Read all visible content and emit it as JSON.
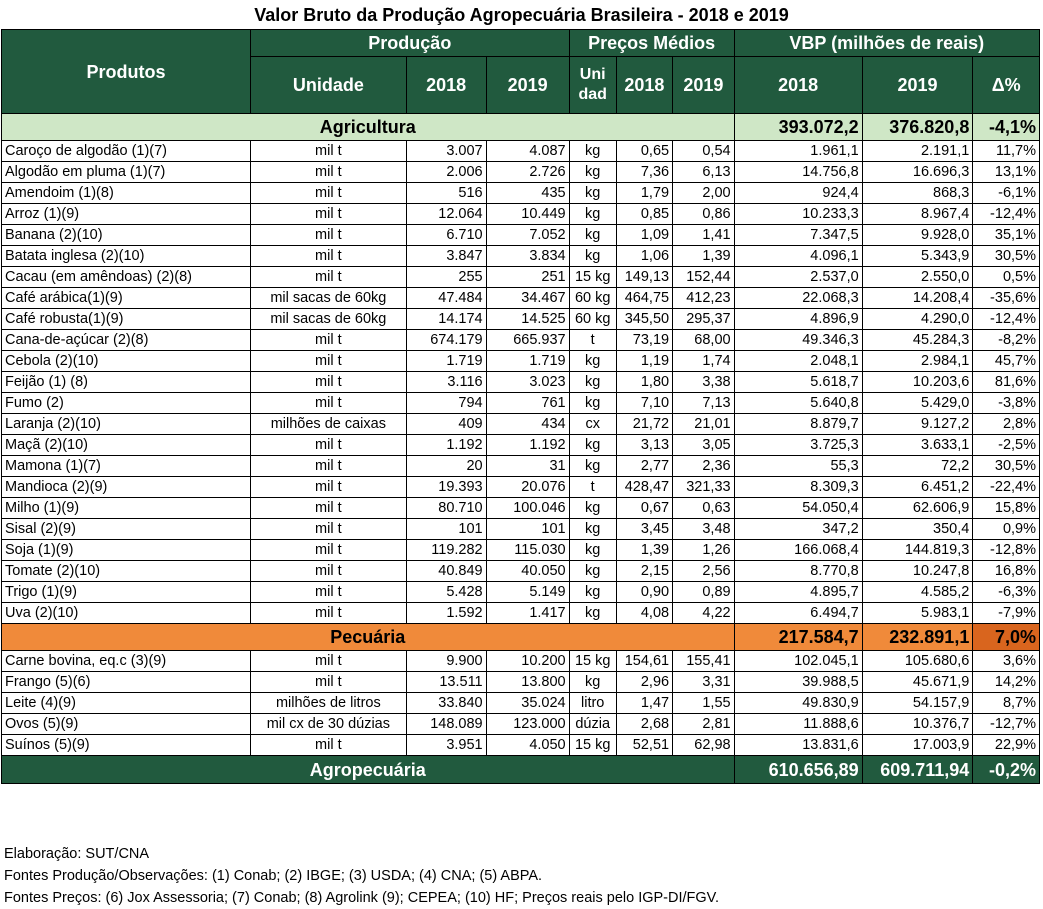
{
  "title": "Valor Bruto da Produção Agropecuária Brasileira - 2018 e 2019",
  "headers": {
    "produtos": "Produtos",
    "producao": "Produção",
    "precos_medios": "Preços Médios",
    "vbp": "VBP (milhões de reais)",
    "unidade": "Unidade",
    "y2018": "2018",
    "y2019": "2019",
    "unid_price": "Uni dad",
    "delta": "Δ%"
  },
  "agricultura": {
    "label": "Agricultura",
    "vbp2018": "393.072,2",
    "vbp2019": "376.820,8",
    "delta": "-4,1%",
    "rows": [
      {
        "produto": "Caroço de algodão (1)(7)",
        "unidade": "mil t",
        "p2018": "3.007",
        "p2019": "4.087",
        "unid": "kg",
        "pr2018": "0,65",
        "pr2019": "0,54",
        "v2018": "1.961,1",
        "v2019": "2.191,1",
        "d": "11,7%"
      },
      {
        "produto": "Algodão em pluma (1)(7)",
        "unidade": "mil t",
        "p2018": "2.006",
        "p2019": "2.726",
        "unid": "kg",
        "pr2018": "7,36",
        "pr2019": "6,13",
        "v2018": "14.756,8",
        "v2019": "16.696,3",
        "d": "13,1%"
      },
      {
        "produto": "Amendoim (1)(8)",
        "unidade": "mil t",
        "p2018": "516",
        "p2019": "435",
        "unid": "kg",
        "pr2018": "1,79",
        "pr2019": "2,00",
        "v2018": "924,4",
        "v2019": "868,3",
        "d": "-6,1%"
      },
      {
        "produto": "Arroz (1)(9)",
        "unidade": "mil t",
        "p2018": "12.064",
        "p2019": "10.449",
        "unid": "kg",
        "pr2018": "0,85",
        "pr2019": "0,86",
        "v2018": "10.233,3",
        "v2019": "8.967,4",
        "d": "-12,4%"
      },
      {
        "produto": "Banana (2)(10)",
        "unidade": "mil t",
        "p2018": "6.710",
        "p2019": "7.052",
        "unid": "kg",
        "pr2018": "1,09",
        "pr2019": "1,41",
        "v2018": "7.347,5",
        "v2019": "9.928,0",
        "d": "35,1%"
      },
      {
        "produto": "Batata inglesa (2)(10)",
        "unidade": "mil t",
        "p2018": "3.847",
        "p2019": "3.834",
        "unid": "kg",
        "pr2018": "1,06",
        "pr2019": "1,39",
        "v2018": "4.096,1",
        "v2019": "5.343,9",
        "d": "30,5%"
      },
      {
        "produto": "Cacau (em amêndoas) (2)(8)",
        "unidade": "mil t",
        "p2018": "255",
        "p2019": "251",
        "unid": "15 kg",
        "pr2018": "149,13",
        "pr2019": "152,44",
        "v2018": "2.537,0",
        "v2019": "2.550,0",
        "d": "0,5%"
      },
      {
        "produto": "Café arábica(1)(9)",
        "unidade": "mil sacas de 60kg",
        "p2018": "47.484",
        "p2019": "34.467",
        "unid": "60 kg",
        "pr2018": "464,75",
        "pr2019": "412,23",
        "v2018": "22.068,3",
        "v2019": "14.208,4",
        "d": "-35,6%"
      },
      {
        "produto": "Café robusta(1)(9)",
        "unidade": "mil sacas de 60kg",
        "p2018": "14.174",
        "p2019": "14.525",
        "unid": "60 kg",
        "pr2018": "345,50",
        "pr2019": "295,37",
        "v2018": "4.896,9",
        "v2019": "4.290,0",
        "d": "-12,4%"
      },
      {
        "produto": "Cana-de-açúcar (2)(8)",
        "unidade": "mil t",
        "p2018": "674.179",
        "p2019": "665.937",
        "unid": "t",
        "pr2018": "73,19",
        "pr2019": "68,00",
        "v2018": "49.346,3",
        "v2019": "45.284,3",
        "d": "-8,2%"
      },
      {
        "produto": "Cebola (2)(10)",
        "unidade": "mil t",
        "p2018": "1.719",
        "p2019": "1.719",
        "unid": "kg",
        "pr2018": "1,19",
        "pr2019": "1,74",
        "v2018": "2.048,1",
        "v2019": "2.984,1",
        "d": "45,7%"
      },
      {
        "produto": "Feijão (1) (8)",
        "unidade": "mil t",
        "p2018": "3.116",
        "p2019": "3.023",
        "unid": "kg",
        "pr2018": "1,80",
        "pr2019": "3,38",
        "v2018": "5.618,7",
        "v2019": "10.203,6",
        "d": "81,6%"
      },
      {
        "produto": "Fumo (2)",
        "unidade": "mil t",
        "p2018": "794",
        "p2019": "761",
        "unid": "kg",
        "pr2018": "7,10",
        "pr2019": "7,13",
        "v2018": "5.640,8",
        "v2019": "5.429,0",
        "d": "-3,8%"
      },
      {
        "produto": "Laranja (2)(10)",
        "unidade": "milhões de caixas",
        "p2018": "409",
        "p2019": "434",
        "unid": "cx",
        "pr2018": "21,72",
        "pr2019": "21,01",
        "v2018": "8.879,7",
        "v2019": "9.127,2",
        "d": "2,8%"
      },
      {
        "produto": "Maçã (2)(10)",
        "unidade": "mil t",
        "p2018": "1.192",
        "p2019": "1.192",
        "unid": "kg",
        "pr2018": "3,13",
        "pr2019": "3,05",
        "v2018": "3.725,3",
        "v2019": "3.633,1",
        "d": "-2,5%"
      },
      {
        "produto": "Mamona (1)(7)",
        "unidade": "mil t",
        "p2018": "20",
        "p2019": "31",
        "unid": "kg",
        "pr2018": "2,77",
        "pr2019": "2,36",
        "v2018": "55,3",
        "v2019": "72,2",
        "d": "30,5%"
      },
      {
        "produto": "Mandioca (2)(9)",
        "unidade": "mil t",
        "p2018": "19.393",
        "p2019": "20.076",
        "unid": "t",
        "pr2018": "428,47",
        "pr2019": "321,33",
        "v2018": "8.309,3",
        "v2019": "6.451,2",
        "d": "-22,4%"
      },
      {
        "produto": "Milho (1)(9)",
        "unidade": "mil t",
        "p2018": "80.710",
        "p2019": "100.046",
        "unid": "kg",
        "pr2018": "0,67",
        "pr2019": "0,63",
        "v2018": "54.050,4",
        "v2019": "62.606,9",
        "d": "15,8%"
      },
      {
        "produto": "Sisal (2)(9)",
        "unidade": "mil t",
        "p2018": "101",
        "p2019": "101",
        "unid": "kg",
        "pr2018": "3,45",
        "pr2019": "3,48",
        "v2018": "347,2",
        "v2019": "350,4",
        "d": "0,9%"
      },
      {
        "produto": "Soja (1)(9)",
        "unidade": "mil t",
        "p2018": "119.282",
        "p2019": "115.030",
        "unid": "kg",
        "pr2018": "1,39",
        "pr2019": "1,26",
        "v2018": "166.068,4",
        "v2019": "144.819,3",
        "d": "-12,8%"
      },
      {
        "produto": "Tomate (2)(10)",
        "unidade": "mil t",
        "p2018": "40.849",
        "p2019": "40.050",
        "unid": "kg",
        "pr2018": "2,15",
        "pr2019": "2,56",
        "v2018": "8.770,8",
        "v2019": "10.247,8",
        "d": "16,8%"
      },
      {
        "produto": "Trigo (1)(9)",
        "unidade": "mil t",
        "p2018": "5.428",
        "p2019": "5.149",
        "unid": "kg",
        "pr2018": "0,90",
        "pr2019": "0,89",
        "v2018": "4.895,7",
        "v2019": "4.585,2",
        "d": "-6,3%"
      },
      {
        "produto": "Uva (2)(10)",
        "unidade": "mil t",
        "p2018": "1.592",
        "p2019": "1.417",
        "unid": "kg",
        "pr2018": "4,08",
        "pr2019": "4,22",
        "v2018": "6.494,7",
        "v2019": "5.983,1",
        "d": "-7,9%"
      }
    ]
  },
  "pecuaria": {
    "label": "Pecuária",
    "vbp2018": "217.584,7",
    "vbp2019": "232.891,1",
    "delta": "7,0%",
    "rows": [
      {
        "produto": "Carne bovina, eq.c (3)(9)",
        "unidade": "mil t",
        "p2018": "9.900",
        "p2019": "10.200",
        "unid": "15 kg",
        "pr2018": "154,61",
        "pr2019": "155,41",
        "v2018": "102.045,1",
        "v2019": "105.680,6",
        "d": "3,6%"
      },
      {
        "produto": "Frango (5)(6)",
        "unidade": "mil t",
        "p2018": "13.511",
        "p2019": "13.800",
        "unid": "kg",
        "pr2018": "2,96",
        "pr2019": "3,31",
        "v2018": "39.988,5",
        "v2019": "45.671,9",
        "d": "14,2%"
      },
      {
        "produto": "Leite (4)(9)",
        "unidade": "milhões de litros",
        "p2018": "33.840",
        "p2019": "35.024",
        "unid": "litro",
        "pr2018": "1,47",
        "pr2019": "1,55",
        "v2018": "49.830,9",
        "v2019": "54.157,9",
        "d": "8,7%"
      },
      {
        "produto": "Ovos (5)(9)",
        "unidade": "mil cx de 30 dúzias",
        "p2018": "148.089",
        "p2019": "123.000",
        "unid": "dúzia",
        "pr2018": "2,68",
        "pr2019": "2,81",
        "v2018": "11.888,6",
        "v2019": "10.376,7",
        "d": "-12,7%"
      },
      {
        "produto": "Suínos (5)(9)",
        "unidade": "mil t",
        "p2018": "3.951",
        "p2019": "4.050",
        "unid": "15 kg",
        "pr2018": "52,51",
        "pr2019": "62,98",
        "v2018": "13.831,6",
        "v2019": "17.003,9",
        "d": "22,9%"
      }
    ]
  },
  "total": {
    "label": "Agropecuária",
    "vbp2018": "610.656,89",
    "vbp2019": "609.711,94",
    "delta": "-0,2%"
  },
  "notes": [
    "Elaboração: SUT/CNA",
    "Fontes Produção/Observações: (1) Conab; (2) IBGE; (3) USDA; (4) CNA; (5) ABPA.",
    "Fontes Preços: (6) Jox Assessoria; (7) Conab; (8) Agrolink (9); CEPEA; (10) HF; Preços reais pelo IGP-DI/FGV."
  ]
}
